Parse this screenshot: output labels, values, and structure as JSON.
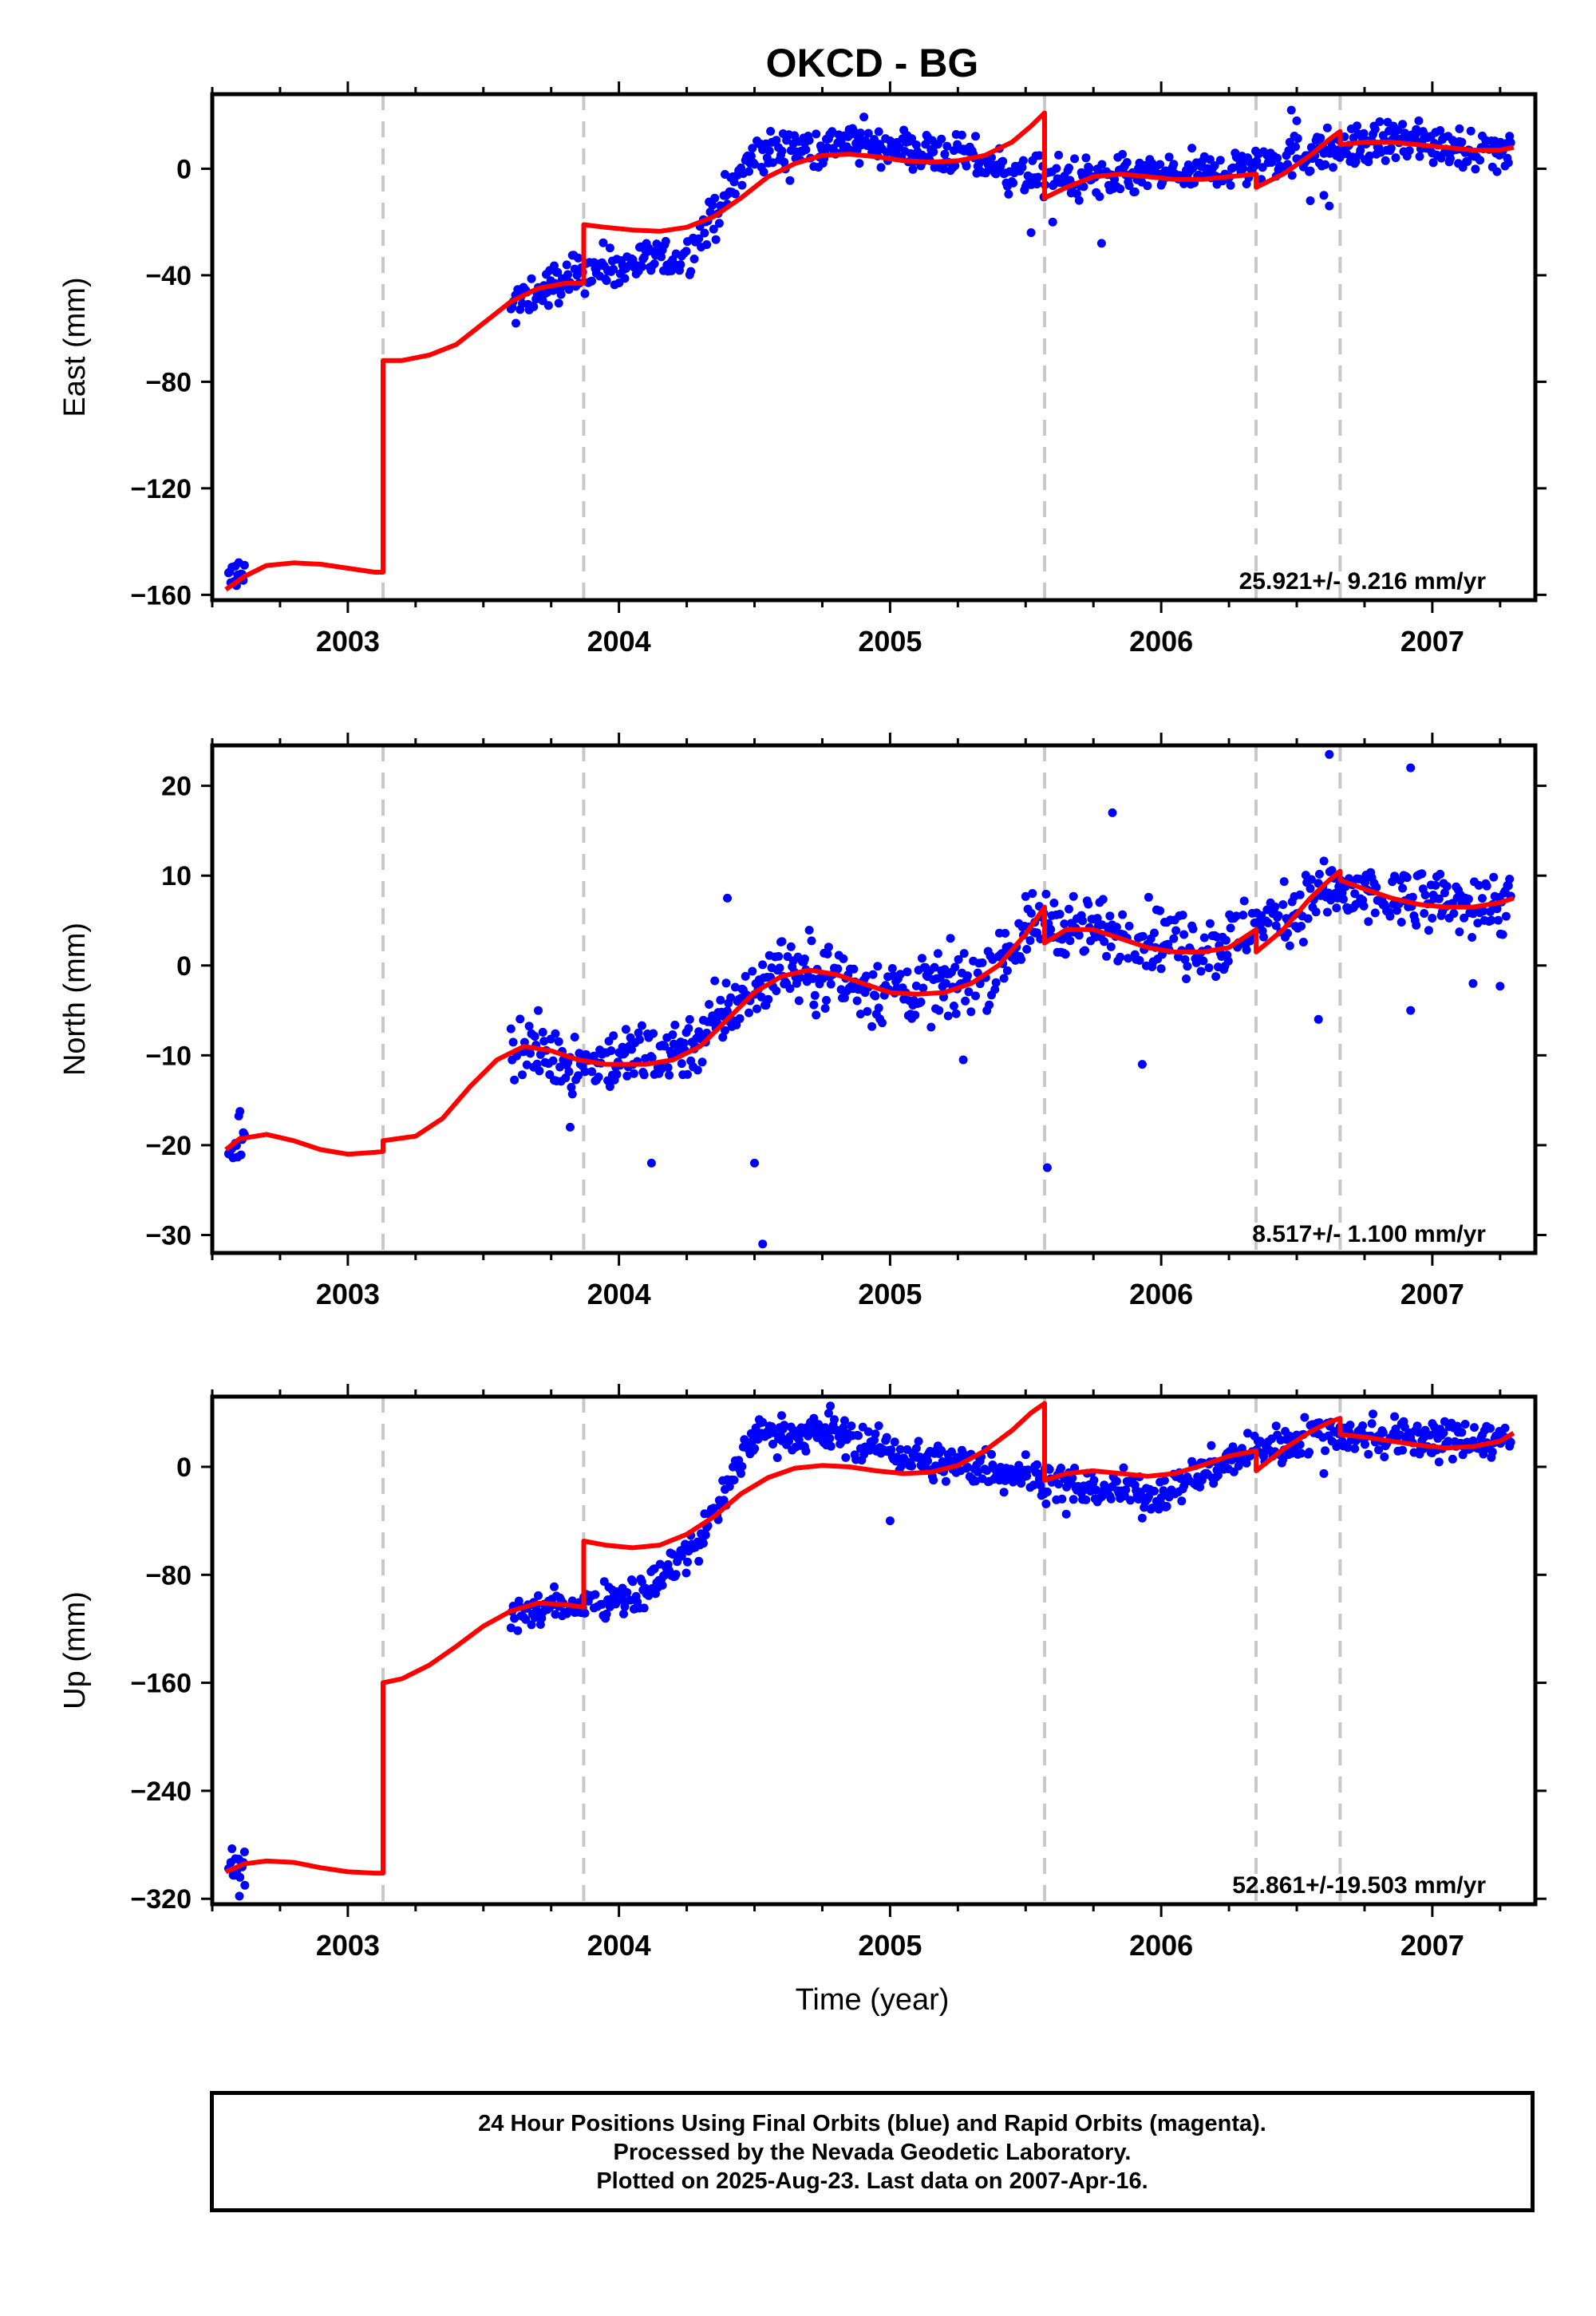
{
  "title": "OKCD - BG",
  "xlabel": "Time (year)",
  "footer": {
    "line1": "24 Hour Positions Using Final Orbits (blue) and Rapid Orbits (magenta).",
    "line2": "Processed by the Nevada Geodetic Laboratory.",
    "line3": "Plotted on 2025-Aug-23. Last data on 2007-Apr-16."
  },
  "colors": {
    "data": "#0000ff",
    "model": "#ff0000",
    "steps": "#c8c8c8",
    "axes": "#000000"
  },
  "chart_data": [
    {
      "type": "scatter",
      "ylabel": "East (mm)",
      "rate_label": "25.921+/- 9.216 mm/yr",
      "xlim": [
        2002.5,
        2007.38
      ],
      "ylim": [
        -162,
        28
      ],
      "yticks": [
        0,
        -40,
        -80,
        -120,
        -160
      ],
      "xticks": [
        2003,
        2004,
        2005,
        2006,
        2007
      ],
      "step_epochs": [
        2003.13,
        2003.87,
        2005.57,
        2006.35,
        2006.66
      ],
      "model": [
        [
          2002.55,
          -158
        ],
        [
          2002.62,
          -153
        ],
        [
          2002.7,
          -149
        ],
        [
          2002.8,
          -148
        ],
        [
          2002.9,
          -148.5
        ],
        [
          2003.0,
          -150
        ],
        [
          2003.1,
          -151.5
        ],
        [
          2003.13,
          -151.5
        ],
        [
          2003.13,
          -72
        ],
        [
          2003.2,
          -72
        ],
        [
          2003.3,
          -70
        ],
        [
          2003.4,
          -66
        ],
        [
          2003.5,
          -58
        ],
        [
          2003.6,
          -50
        ],
        [
          2003.7,
          -45
        ],
        [
          2003.8,
          -43
        ],
        [
          2003.87,
          -43
        ],
        [
          2003.87,
          -21
        ],
        [
          2003.95,
          -22
        ],
        [
          2004.05,
          -23
        ],
        [
          2004.15,
          -23.5
        ],
        [
          2004.25,
          -22
        ],
        [
          2004.35,
          -18
        ],
        [
          2004.45,
          -11
        ],
        [
          2004.55,
          -3
        ],
        [
          2004.65,
          2
        ],
        [
          2004.75,
          5
        ],
        [
          2004.85,
          5.5
        ],
        [
          2004.95,
          4.5
        ],
        [
          2005.05,
          3
        ],
        [
          2005.15,
          2.5
        ],
        [
          2005.25,
          3
        ],
        [
          2005.35,
          5
        ],
        [
          2005.45,
          10
        ],
        [
          2005.52,
          16
        ],
        [
          2005.57,
          21
        ],
        [
          2005.57,
          -11
        ],
        [
          2005.65,
          -7
        ],
        [
          2005.75,
          -3
        ],
        [
          2005.85,
          -2
        ],
        [
          2005.95,
          -3
        ],
        [
          2006.05,
          -4
        ],
        [
          2006.15,
          -4
        ],
        [
          2006.25,
          -3
        ],
        [
          2006.35,
          -2
        ],
        [
          2006.35,
          -7
        ],
        [
          2006.45,
          -2
        ],
        [
          2006.55,
          5
        ],
        [
          2006.62,
          11
        ],
        [
          2006.66,
          14
        ],
        [
          2006.66,
          9
        ],
        [
          2006.75,
          10
        ],
        [
          2006.85,
          10
        ],
        [
          2006.95,
          9
        ],
        [
          2007.05,
          8
        ],
        [
          2007.15,
          7
        ],
        [
          2007.25,
          7
        ],
        [
          2007.3,
          8
        ]
      ],
      "trend": [
        [
          2002.55,
          -157
        ],
        [
          2002.6,
          -151
        ],
        [
          2003.6,
          -52
        ],
        [
          2003.87,
          -38
        ],
        [
          2004.25,
          -33
        ],
        [
          2004.5,
          5
        ],
        [
          2004.85,
          10
        ],
        [
          2005.3,
          4
        ],
        [
          2005.5,
          -3
        ],
        [
          2005.8,
          -4
        ],
        [
          2006.2,
          -1
        ],
        [
          2006.5,
          5
        ],
        [
          2006.8,
          10
        ],
        [
          2007.0,
          10
        ],
        [
          2007.3,
          5
        ]
      ],
      "spread": 5.5,
      "outliers": [
        [
          2005.52,
          -24
        ],
        [
          2005.78,
          -28
        ],
        [
          2006.48,
          22
        ],
        [
          2006.5,
          18
        ],
        [
          2006.62,
          -14
        ],
        [
          2006.55,
          -12
        ],
        [
          2003.62,
          -58
        ],
        [
          2005.6,
          -20
        ],
        [
          2006.6,
          -10
        ],
        [
          2006.95,
          18
        ],
        [
          2007.1,
          15
        ]
      ]
    },
    {
      "type": "scatter",
      "ylabel": "North (mm)",
      "rate_label": "8.517+/- 1.100 mm/yr",
      "xlim": [
        2002.5,
        2007.38
      ],
      "ylim": [
        -32,
        24.5
      ],
      "yticks": [
        20,
        10,
        0,
        -10,
        -20,
        -30
      ],
      "xticks": [
        2003,
        2004,
        2005,
        2006,
        2007
      ],
      "step_epochs": [
        2003.13,
        2003.87,
        2005.57,
        2006.35,
        2006.66
      ],
      "model": [
        [
          2002.55,
          -20.5
        ],
        [
          2002.6,
          -19.3
        ],
        [
          2002.7,
          -18.8
        ],
        [
          2002.8,
          -19.5
        ],
        [
          2002.9,
          -20.5
        ],
        [
          2003.0,
          -21
        ],
        [
          2003.1,
          -20.8
        ],
        [
          2003.13,
          -20.7
        ],
        [
          2003.13,
          -19.5
        ],
        [
          2003.25,
          -19
        ],
        [
          2003.35,
          -17
        ],
        [
          2003.45,
          -13.5
        ],
        [
          2003.55,
          -10.5
        ],
        [
          2003.65,
          -9
        ],
        [
          2003.75,
          -9.5
        ],
        [
          2003.85,
          -10.5
        ],
        [
          2003.95,
          -11
        ],
        [
          2004.1,
          -11
        ],
        [
          2004.2,
          -10.5
        ],
        [
          2004.3,
          -9
        ],
        [
          2004.4,
          -6
        ],
        [
          2004.5,
          -3
        ],
        [
          2004.6,
          -1.2
        ],
        [
          2004.7,
          -0.5
        ],
        [
          2004.8,
          -1
        ],
        [
          2004.9,
          -2
        ],
        [
          2005.0,
          -3
        ],
        [
          2005.1,
          -3.2
        ],
        [
          2005.2,
          -3
        ],
        [
          2005.3,
          -2
        ],
        [
          2005.4,
          0
        ],
        [
          2005.5,
          3.5
        ],
        [
          2005.57,
          6.5
        ],
        [
          2005.57,
          2.5
        ],
        [
          2005.65,
          4
        ],
        [
          2005.75,
          4
        ],
        [
          2005.85,
          3
        ],
        [
          2005.95,
          2
        ],
        [
          2006.05,
          1.5
        ],
        [
          2006.15,
          1.5
        ],
        [
          2006.25,
          2
        ],
        [
          2006.35,
          4
        ],
        [
          2006.35,
          1.5
        ],
        [
          2006.45,
          4
        ],
        [
          2006.55,
          7.5
        ],
        [
          2006.62,
          9.5
        ],
        [
          2006.66,
          10.5
        ],
        [
          2006.66,
          9.5
        ],
        [
          2006.75,
          8.5
        ],
        [
          2006.85,
          7.5
        ],
        [
          2006.95,
          6.8
        ],
        [
          2007.05,
          6.5
        ],
        [
          2007.15,
          6.5
        ],
        [
          2007.25,
          7
        ],
        [
          2007.3,
          7.5
        ]
      ],
      "trend": [
        [
          2002.55,
          -19.5
        ],
        [
          2002.6,
          -19
        ],
        [
          2003.6,
          -9
        ],
        [
          2003.87,
          -11
        ],
        [
          2004.25,
          -9
        ],
        [
          2004.6,
          0
        ],
        [
          2005.0,
          -3
        ],
        [
          2005.3,
          -2
        ],
        [
          2005.55,
          5
        ],
        [
          2005.8,
          4
        ],
        [
          2006.2,
          2
        ],
        [
          2006.6,
          8
        ],
        [
          2006.9,
          7
        ],
        [
          2007.3,
          7
        ]
      ],
      "spread": 2.6,
      "outliers": [
        [
          2004.53,
          -31
        ],
        [
          2005.58,
          -22.5
        ],
        [
          2006.62,
          23.5
        ],
        [
          2006.92,
          22
        ],
        [
          2005.82,
          17
        ],
        [
          2005.27,
          -10.5
        ],
        [
          2005.93,
          -11
        ],
        [
          2006.58,
          -6
        ],
        [
          2006.92,
          -5
        ],
        [
          2007.15,
          -2
        ],
        [
          2007.25,
          -2.3
        ],
        [
          2004.12,
          -22
        ],
        [
          2004.5,
          -22
        ],
        [
          2003.82,
          -18
        ],
        [
          2004.4,
          7.5
        ]
      ]
    },
    {
      "type": "scatter",
      "ylabel": "Up (mm)",
      "rate_label": "52.861+/-19.503 mm/yr",
      "xlim": [
        2002.5,
        2007.38
      ],
      "ylim": [
        -324,
        52
      ],
      "yticks": [
        0,
        -80,
        -160,
        -240,
        -320
      ],
      "xticks": [
        2003,
        2004,
        2005,
        2006,
        2007
      ],
      "step_epochs": [
        2003.13,
        2003.87,
        2005.57,
        2006.35,
        2006.66
      ],
      "model": [
        [
          2002.55,
          -300
        ],
        [
          2002.62,
          -294
        ],
        [
          2002.7,
          -292
        ],
        [
          2002.8,
          -293
        ],
        [
          2002.9,
          -297
        ],
        [
          2003.0,
          -300
        ],
        [
          2003.1,
          -301
        ],
        [
          2003.13,
          -301
        ],
        [
          2003.13,
          -160
        ],
        [
          2003.2,
          -157
        ],
        [
          2003.3,
          -147
        ],
        [
          2003.4,
          -133
        ],
        [
          2003.5,
          -118
        ],
        [
          2003.6,
          -107
        ],
        [
          2003.7,
          -101
        ],
        [
          2003.8,
          -102
        ],
        [
          2003.87,
          -104
        ],
        [
          2003.87,
          -55
        ],
        [
          2003.95,
          -58
        ],
        [
          2004.05,
          -60
        ],
        [
          2004.15,
          -58
        ],
        [
          2004.25,
          -50
        ],
        [
          2004.35,
          -37
        ],
        [
          2004.45,
          -20
        ],
        [
          2004.55,
          -8
        ],
        [
          2004.65,
          -1
        ],
        [
          2004.75,
          1
        ],
        [
          2004.85,
          0
        ],
        [
          2004.95,
          -3
        ],
        [
          2005.05,
          -5
        ],
        [
          2005.15,
          -4
        ],
        [
          2005.25,
          1
        ],
        [
          2005.35,
          12
        ],
        [
          2005.45,
          27
        ],
        [
          2005.52,
          40
        ],
        [
          2005.57,
          47
        ],
        [
          2005.57,
          -10
        ],
        [
          2005.65,
          -5
        ],
        [
          2005.75,
          -3
        ],
        [
          2005.85,
          -5
        ],
        [
          2005.95,
          -7
        ],
        [
          2006.05,
          -5
        ],
        [
          2006.15,
          1
        ],
        [
          2006.25,
          8
        ],
        [
          2006.35,
          12
        ],
        [
          2006.35,
          -3
        ],
        [
          2006.45,
          13
        ],
        [
          2006.55,
          26
        ],
        [
          2006.62,
          33
        ],
        [
          2006.66,
          36
        ],
        [
          2006.66,
          24
        ],
        [
          2006.75,
          22
        ],
        [
          2006.85,
          19
        ],
        [
          2006.95,
          16
        ],
        [
          2007.05,
          14
        ],
        [
          2007.15,
          15
        ],
        [
          2007.25,
          19
        ],
        [
          2007.3,
          25
        ]
      ],
      "trend": [
        [
          2002.55,
          -297
        ],
        [
          2002.6,
          -300
        ],
        [
          2003.6,
          -110
        ],
        [
          2003.87,
          -100
        ],
        [
          2004.1,
          -92
        ],
        [
          2004.3,
          -55
        ],
        [
          2004.5,
          25
        ],
        [
          2004.8,
          25
        ],
        [
          2005.1,
          5
        ],
        [
          2005.5,
          -5
        ],
        [
          2005.7,
          -15
        ],
        [
          2006.0,
          -20
        ],
        [
          2006.3,
          10
        ],
        [
          2006.6,
          25
        ],
        [
          2007.0,
          20
        ],
        [
          2007.3,
          20
        ]
      ],
      "spread": 10,
      "outliers": [
        [
          2002.6,
          -318
        ],
        [
          2002.62,
          -310
        ],
        [
          2004.6,
          38
        ],
        [
          2004.78,
          45
        ],
        [
          2005.93,
          -38
        ],
        [
          2005.65,
          -35
        ],
        [
          2005.0,
          -40
        ],
        [
          2006.6,
          -5
        ],
        [
          2007.2,
          30
        ],
        [
          2007.0,
          32
        ]
      ]
    }
  ]
}
